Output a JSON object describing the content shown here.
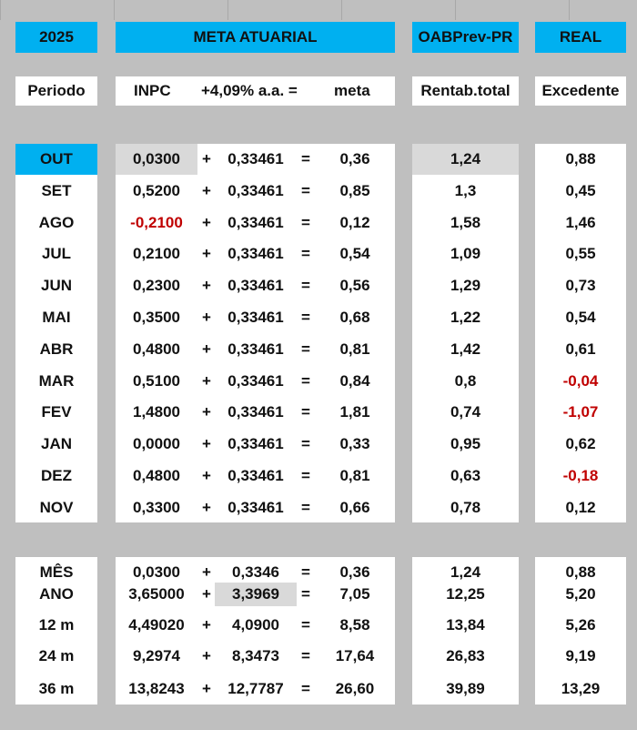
{
  "headers": {
    "year": "2025",
    "meta": "META ATUARIAL",
    "oab": "OABPrev-PR",
    "real": "REAL"
  },
  "subheaders": {
    "periodo": "Periodo",
    "inpc": "INPC",
    "rate": "+4,09% a.a. =",
    "meta": "meta",
    "rentab": "Rentab.total",
    "excedente": "Excedente"
  },
  "months": [
    {
      "label": "OUT",
      "inpc": "0,0300",
      "plus": "+",
      "rate": "0,33461",
      "eq": "=",
      "meta": "0,36",
      "rentab": "1,24",
      "real": "0,88"
    },
    {
      "label": "SET",
      "inpc": "0,5200",
      "plus": "+",
      "rate": "0,33461",
      "eq": "=",
      "meta": "0,85",
      "rentab": "1,3",
      "real": "0,45"
    },
    {
      "label": "AGO",
      "inpc": "-0,2100",
      "plus": "+",
      "rate": "0,33461",
      "eq": "=",
      "meta": "0,12",
      "rentab": "1,58",
      "real": "1,46"
    },
    {
      "label": "JUL",
      "inpc": "0,2100",
      "plus": "+",
      "rate": "0,33461",
      "eq": "=",
      "meta": "0,54",
      "rentab": "1,09",
      "real": "0,55"
    },
    {
      "label": "JUN",
      "inpc": "0,2300",
      "plus": "+",
      "rate": "0,33461",
      "eq": "=",
      "meta": "0,56",
      "rentab": "1,29",
      "real": "0,73"
    },
    {
      "label": "MAI",
      "inpc": "0,3500",
      "plus": "+",
      "rate": "0,33461",
      "eq": "=",
      "meta": "0,68",
      "rentab": "1,22",
      "real": "0,54"
    },
    {
      "label": "ABR",
      "inpc": "0,4800",
      "plus": "+",
      "rate": "0,33461",
      "eq": "=",
      "meta": "0,81",
      "rentab": "1,42",
      "real": "0,61"
    },
    {
      "label": "MAR",
      "inpc": "0,5100",
      "plus": "+",
      "rate": "0,33461",
      "eq": "=",
      "meta": "0,84",
      "rentab": "0,8",
      "real": "-0,04"
    },
    {
      "label": "FEV",
      "inpc": "1,4800",
      "plus": "+",
      "rate": "0,33461",
      "eq": "=",
      "meta": "1,81",
      "rentab": "0,74",
      "real": "-1,07"
    },
    {
      "label": "JAN",
      "inpc": "0,0000",
      "plus": "+",
      "rate": "0,33461",
      "eq": "=",
      "meta": "0,33",
      "rentab": "0,95",
      "real": "0,62"
    },
    {
      "label": "DEZ",
      "inpc": "0,4800",
      "plus": "+",
      "rate": "0,33461",
      "eq": "=",
      "meta": "0,81",
      "rentab": "0,63",
      "real": "-0,18"
    },
    {
      "label": "NOV",
      "inpc": "0,3300",
      "plus": "+",
      "rate": "0,33461",
      "eq": "=",
      "meta": "0,66",
      "rentab": "0,78",
      "real": "0,12"
    }
  ],
  "summary": [
    {
      "label": "MÊS",
      "inpc": "0,0300",
      "plus": "+",
      "rate": "0,3346",
      "eq": "=",
      "meta": "0,36",
      "rentab": "1,24",
      "real": "0,88"
    },
    {
      "label": "ANO",
      "inpc": "3,65000",
      "plus": "+",
      "rate": "3,3969",
      "eq": "=",
      "meta": "7,05",
      "rentab": "12,25",
      "real": "5,20"
    },
    {
      "label": "12 m",
      "inpc": "4,49020",
      "plus": "+",
      "rate": "4,0900",
      "eq": "=",
      "meta": "8,58",
      "rentab": "13,84",
      "real": "5,26"
    },
    {
      "label": "24 m",
      "inpc": "9,2974",
      "plus": "+",
      "rate": "8,3473",
      "eq": "=",
      "meta": "17,64",
      "rentab": "26,83",
      "real": "9,19"
    },
    {
      "label": "36 m",
      "inpc": "13,8243",
      "plus": "+",
      "rate": "12,7787",
      "eq": "=",
      "meta": "26,60",
      "rentab": "39,89",
      "real": "13,29"
    }
  ],
  "colors": {
    "header": "#00b0f0",
    "negative": "#c00000",
    "highlight": "#d9d9d9"
  }
}
